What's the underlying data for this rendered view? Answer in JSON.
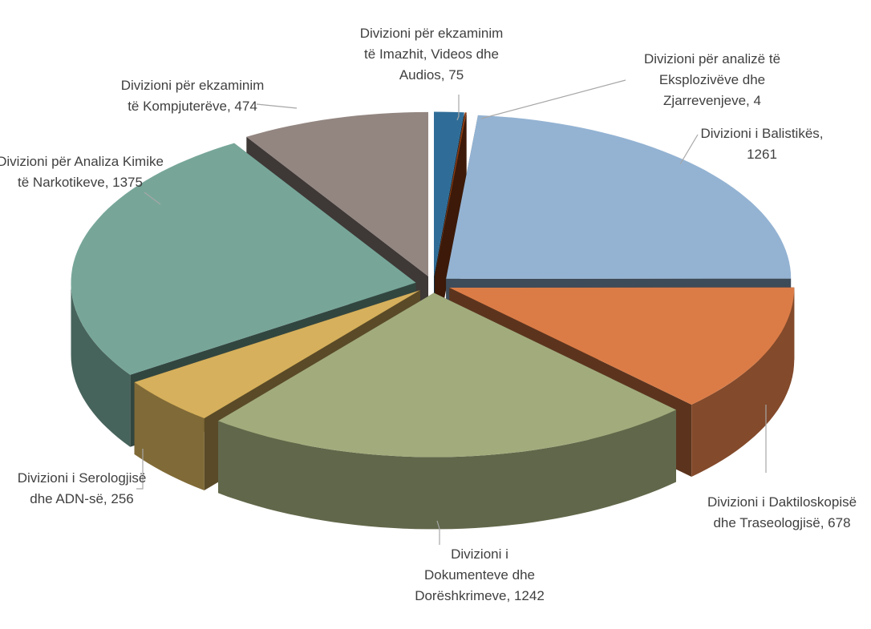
{
  "chart_data": {
    "type": "pie3d",
    "labels": [
      "Divizioni për ekzaminim të Imazhit, Videos dhe Audios, 75",
      "Divizioni për analizë të Eksplozivëve dhe Zjarrevenjeve, 4",
      "Divizioni i Balistikës, 1261",
      "Divizioni i Daktiloskopisë dhe Traseologjisë, 678",
      "Divizioni i Dokumenteve dhe Dorëshkrimeve, 1242",
      "Divizioni i Serologjisë dhe ADN-së, 256",
      "Divizioni për Analiza Kimike të Narkotikeve, 1375",
      "Divizioni për ekzaminim të Kompjuterëve, 474"
    ],
    "values": [
      75,
      4,
      1261,
      678,
      1242,
      256,
      1375,
      474
    ],
    "colors": [
      "#2f6d98",
      "#8e3c12",
      "#94b3d3",
      "#db7c47",
      "#a2ab7c",
      "#d6b05c",
      "#77a699",
      "#938681"
    ]
  }
}
